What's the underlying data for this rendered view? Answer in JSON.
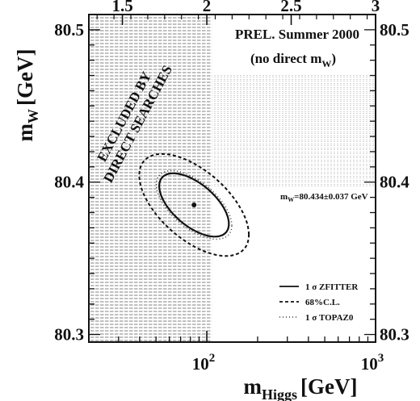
{
  "chart_data": {
    "type": "contour",
    "title_line1": "PREL. Summer 2000",
    "title_line2_prefix": "(no direct m",
    "title_line2_sub": "W",
    "title_line2_suffix": ")",
    "xlabel_main": "m",
    "xlabel_sub": "Higgs",
    "xlabel_unit": "[GeV]",
    "ylabel_main": "m",
    "ylabel_sub": "W",
    "ylabel_unit": "[GeV]",
    "x_scale": "log",
    "xlim": [
      20,
      1000
    ],
    "ylim": [
      80.295,
      80.51
    ],
    "y_ticks": [
      "80.3",
      "80.4",
      "80.5"
    ],
    "x_bottom_ticks": [
      {
        "base": "10",
        "exp": "2"
      },
      {
        "base": "10",
        "exp": "3"
      }
    ],
    "x_top_ticks": [
      "1.5",
      "2",
      "2.5",
      "3"
    ],
    "excluded_label_line1": "EXCLUDED BY",
    "excluded_label_line2": "DIRECT SEARCHES",
    "excluded_mh_limit": 107,
    "mw_band": {
      "label_prefix": "m",
      "label_sub": "W",
      "label_suffix": "=80.434±0.037 GeV",
      "center": 80.434,
      "sigma": 0.037
    },
    "best_fit": {
      "mh": 84,
      "mw": 80.385
    },
    "legend": [
      {
        "label": "1 σ ZFITTER",
        "style": "solid"
      },
      {
        "label": "68%C.L.",
        "style": "dashed"
      },
      {
        "label": "1 σ TOPAZ0",
        "style": "dotted"
      }
    ],
    "legend_position": "bottom-right",
    "colors": {
      "ink": "#111111",
      "hatch": "#555555"
    }
  }
}
